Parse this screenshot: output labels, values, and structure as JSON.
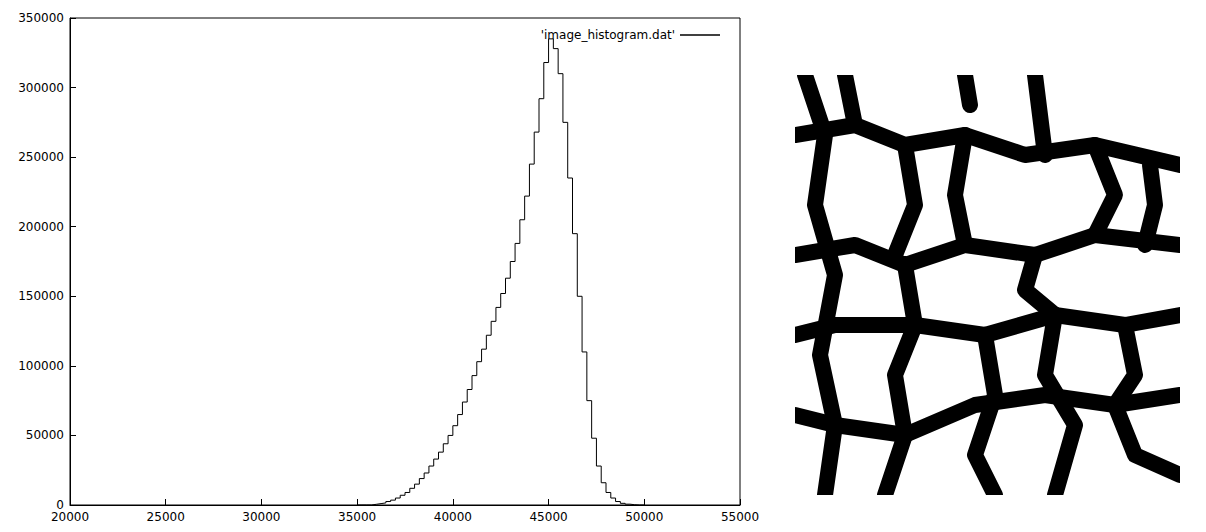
{
  "chart_data": {
    "type": "histogram",
    "bins": [
      35000,
      35250,
      35500,
      35750,
      36000,
      36250,
      36500,
      36750,
      37000,
      37250,
      37500,
      37750,
      38000,
      38250,
      38500,
      38750,
      39000,
      39250,
      39500,
      39750,
      40000,
      40250,
      40500,
      40750,
      41000,
      41250,
      41500,
      41750,
      42000,
      42250,
      42500,
      42750,
      43000,
      43250,
      43500,
      43750,
      44000,
      44250,
      44500,
      44750,
      45000,
      45250,
      45500,
      45750,
      46000,
      46250,
      46500,
      46750,
      47000,
      47250,
      47500,
      47750,
      48000,
      48250,
      48500,
      48750,
      49000,
      49250,
      49500,
      49750,
      50000
    ],
    "series": [
      {
        "name": "'image_histogram.dat'",
        "color": "#000000",
        "values": [
          0,
          0,
          0,
          500,
          1000,
          1500,
          2500,
          3500,
          5000,
          7000,
          9000,
          12000,
          15000,
          19000,
          23000,
          28000,
          33000,
          38000,
          44000,
          50000,
          57000,
          65000,
          74000,
          83000,
          93000,
          103000,
          112000,
          122000,
          132000,
          142000,
          152000,
          163000,
          175000,
          188000,
          205000,
          222000,
          245000,
          268000,
          292000,
          318000,
          335000,
          328000,
          310000,
          275000,
          235000,
          195000,
          150000,
          110000,
          75000,
          48000,
          28000,
          16000,
          9000,
          5000,
          2500,
          1200,
          600,
          200,
          0,
          0
        ]
      }
    ],
    "xlim": [
      20000,
      55000
    ],
    "xticks": [
      20000,
      25000,
      30000,
      35000,
      40000,
      45000,
      50000,
      55000
    ],
    "ylim": [
      0,
      350000
    ],
    "yticks": [
      0,
      50000,
      100000,
      150000,
      200000,
      250000,
      300000,
      350000
    ],
    "legend": "upper right",
    "grid": false
  }
}
